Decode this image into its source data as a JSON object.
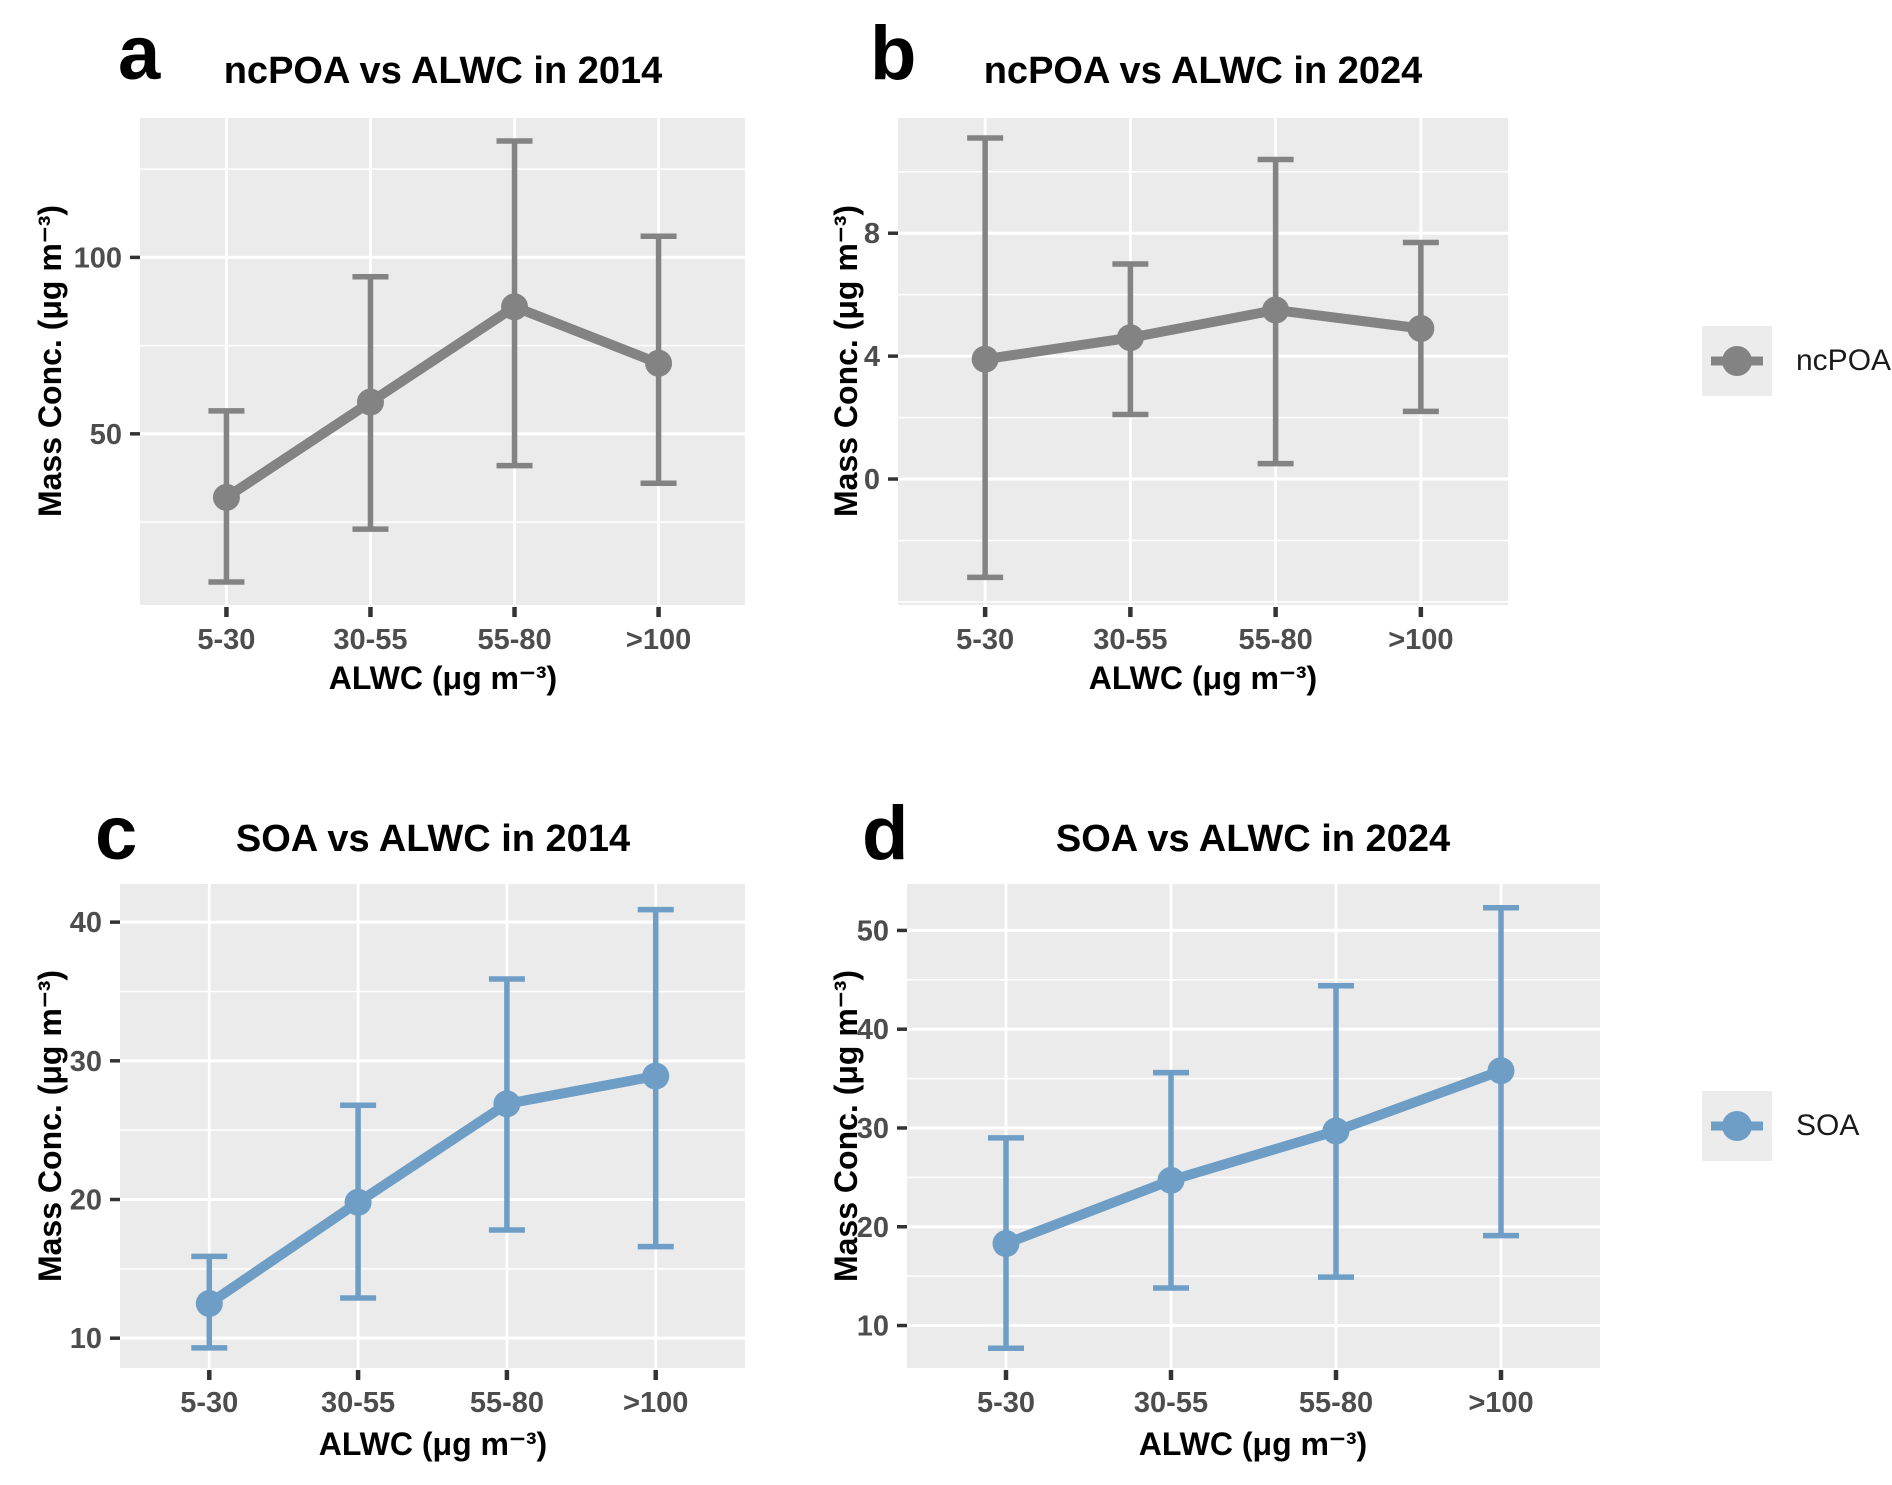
{
  "figure": {
    "background": "#ffffff"
  },
  "colors": {
    "ncpoa": "#838383",
    "soa": "#6e9ec6",
    "panel_bg": "#ebebeb",
    "grid": "#ffffff",
    "tick_mark": "#333333",
    "tick_text": "#4d4d4d",
    "title_text": "#000000",
    "legend_key_bg": "#ececec"
  },
  "legends": [
    {
      "label": "ncPOA",
      "color": "#838383"
    },
    {
      "label": "SOA",
      "color": "#6e9ec6"
    }
  ],
  "chart_data": [
    {
      "id": "a",
      "type": "line",
      "letter": "a",
      "title": "ncPOA vs ALWC in 2014",
      "series": "ncPOA",
      "color": "#838383",
      "xlabel": "ALWC (μg m⁻³)",
      "ylabel": "Mass Conc. (μg m⁻³)",
      "categories": [
        "5-30",
        "30-55",
        "55-80",
        ">100"
      ],
      "mean": [
        32,
        59,
        86,
        70
      ],
      "lower": [
        8,
        23,
        41,
        36
      ],
      "upper": [
        56.5,
        94.5,
        133,
        106
      ],
      "yticks": [
        50,
        100
      ],
      "yminor_step": 25,
      "ylim": [
        1.5,
        139.5
      ],
      "grid": true,
      "legend_position": "right"
    },
    {
      "id": "b",
      "type": "line",
      "letter": "b",
      "title": "ncPOA vs ALWC in 2024",
      "series": "ncPOA",
      "color": "#838383",
      "xlabel": "ALWC (μg m⁻³)",
      "ylabel": "Mass Conc. (μg m⁻³)",
      "categories": [
        "5-30",
        "30-55",
        "55-80",
        ">100"
      ],
      "mean": [
        3.9,
        4.6,
        5.5,
        4.9
      ],
      "lower": [
        -3.2,
        2.1,
        0.5,
        2.2
      ],
      "upper": [
        11.1,
        7.0,
        10.4,
        7.7
      ],
      "yticks": [
        0,
        4,
        8
      ],
      "yminor_step": 2,
      "ylim": [
        -4.1,
        11.75
      ],
      "grid": true,
      "legend_position": "right"
    },
    {
      "id": "c",
      "type": "line",
      "letter": "c",
      "title": "SOA vs ALWC in 2014",
      "series": "SOA",
      "color": "#6e9ec6",
      "xlabel": "ALWC (μg m⁻³)",
      "ylabel": "Mass Conc. (μg m⁻³)",
      "categories": [
        "5-30",
        "30-55",
        "55-80",
        ">100"
      ],
      "mean": [
        12.5,
        19.8,
        26.9,
        28.9
      ],
      "lower": [
        9.3,
        12.9,
        17.8,
        16.6
      ],
      "upper": [
        15.9,
        26.8,
        35.9,
        40.9
      ],
      "yticks": [
        10,
        20,
        30,
        40
      ],
      "yminor_step": 5,
      "ylim": [
        7.85,
        42.75
      ],
      "grid": true,
      "legend_position": "right"
    },
    {
      "id": "d",
      "type": "line",
      "letter": "d",
      "title": "SOA vs ALWC in 2024",
      "series": "SOA",
      "color": "#6e9ec6",
      "xlabel": "ALWC (μg m⁻³)",
      "ylabel": "Mass Conc. (μg m⁻³)",
      "categories": [
        "5-30",
        "30-55",
        "55-80",
        ">100"
      ],
      "mean": [
        18.3,
        24.7,
        29.7,
        35.8
      ],
      "lower": [
        7.7,
        13.8,
        14.9,
        19.1
      ],
      "upper": [
        29.0,
        35.6,
        44.4,
        52.3
      ],
      "yticks": [
        10,
        20,
        30,
        40,
        50
      ],
      "yminor_step": 5,
      "ylim": [
        5.7,
        54.7
      ],
      "grid": true,
      "legend_position": "right"
    }
  ]
}
